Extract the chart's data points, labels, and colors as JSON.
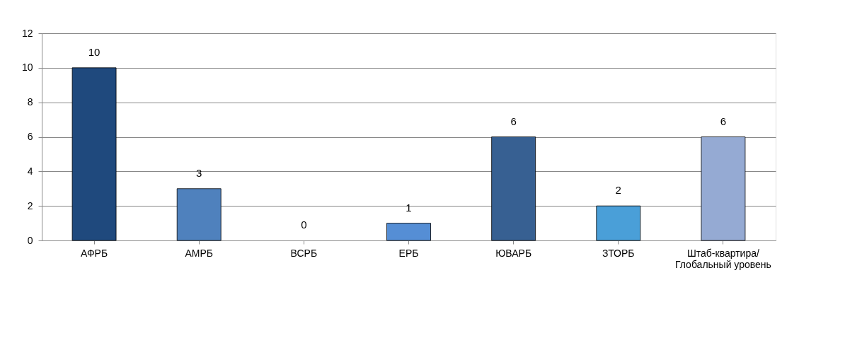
{
  "chart_data": {
    "type": "bar",
    "categories": [
      "АФРБ",
      "АМРБ",
      "ВСРБ",
      "ЕРБ",
      "ЮВАРБ",
      "ЗТОРБ",
      "Штаб-квартира/\nГлобальный уровень"
    ],
    "values": [
      10,
      3,
      0,
      1,
      6,
      2,
      6
    ],
    "colors": [
      "#1f497d",
      "#4f81bd",
      "#4f81bd",
      "#558ed5",
      "#376092",
      "#4a9fd8",
      "#95aad3"
    ],
    "ylim": [
      0,
      12
    ],
    "yticks": [
      0,
      2,
      4,
      6,
      8,
      10,
      12
    ],
    "grid": "y",
    "data_labels": true
  }
}
